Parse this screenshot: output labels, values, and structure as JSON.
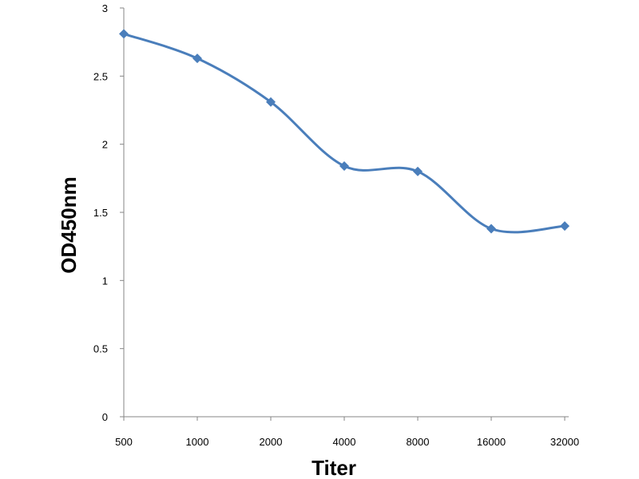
{
  "chart_data": {
    "type": "line",
    "title": "",
    "xlabel": "Titer",
    "ylabel": "OD450nm",
    "categories": [
      "500",
      "1000",
      "2000",
      "4000",
      "8000",
      "16000",
      "32000"
    ],
    "series": [
      {
        "values": [
          2.81,
          2.63,
          2.31,
          1.84,
          1.8,
          1.38,
          1.4
        ],
        "color": "#4a7ebb",
        "marker": "diamond",
        "smoothed": true
      }
    ],
    "ylim": [
      0,
      3
    ],
    "yticks": [
      "0",
      "0.5",
      "1",
      "1.5",
      "2",
      "2.5",
      "3"
    ],
    "grid": false,
    "legend": "none"
  }
}
